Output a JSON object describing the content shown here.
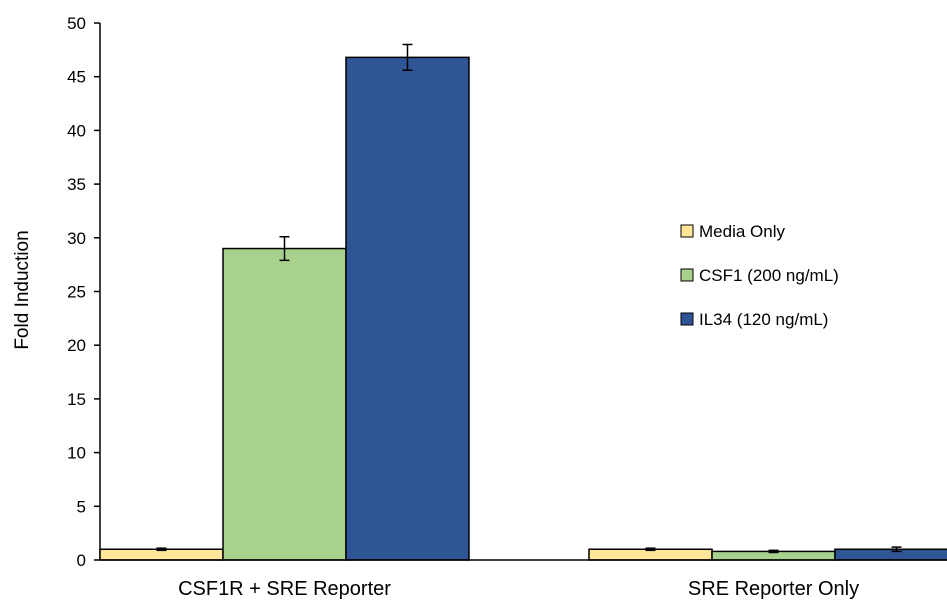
{
  "chart_data": {
    "type": "bar",
    "categories": [
      "CSF1R + SRE Reporter",
      "SRE Reporter Only"
    ],
    "series": [
      {
        "name": "Media Only",
        "color": "#FFE699",
        "values": [
          1.0,
          1.0
        ],
        "errors": [
          0.1,
          0.1
        ]
      },
      {
        "name": "CSF1 (200 ng/mL)",
        "color": "#A9D18E",
        "values": [
          29.0,
          0.8
        ],
        "errors": [
          1.1,
          0.1
        ]
      },
      {
        "name": "IL34 (120 ng/mL)",
        "color": "#2F5597",
        "values": [
          46.8,
          1.0
        ],
        "errors": [
          1.2,
          0.2
        ]
      }
    ],
    "ylabel": "Fold Induction",
    "ylim": [
      0,
      50
    ],
    "yticks": [
      0,
      5,
      10,
      15,
      20,
      25,
      30,
      35,
      40,
      45,
      50
    ],
    "grid": false,
    "legend_position": "right"
  }
}
